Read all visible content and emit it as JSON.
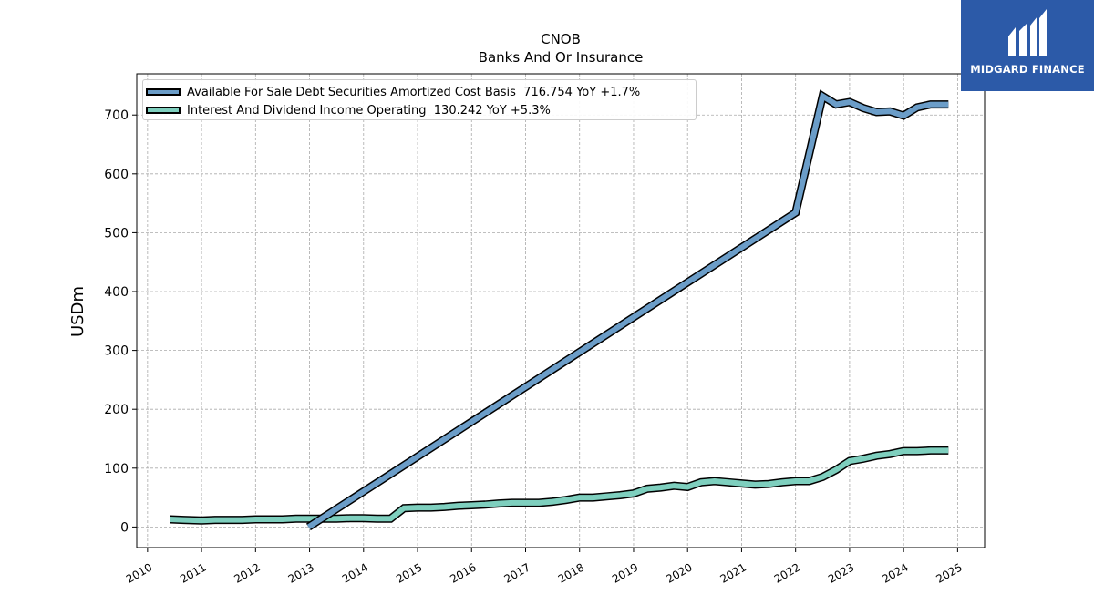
{
  "brand": {
    "name": "MIDGARD FINANCE",
    "color": "#2c5aa8"
  },
  "chart_data": {
    "type": "line",
    "title": "CNOB",
    "subtitle": "Banks And Or Insurance",
    "xlabel": "",
    "ylabel": "USDm",
    "xlim": [
      2009.8,
      2025.5
    ],
    "ylim": [
      -35,
      770
    ],
    "x_ticks": [
      "2010",
      "2011",
      "2012",
      "2013",
      "2014",
      "2015",
      "2016",
      "2017",
      "2018",
      "2019",
      "2020",
      "2021",
      "2022",
      "2023",
      "2024",
      "2025"
    ],
    "y_ticks": [
      "0",
      "100",
      "200",
      "300",
      "400",
      "500",
      "600",
      "700"
    ],
    "grid": true,
    "legend_position": "top-left",
    "series": [
      {
        "name": "Available For Sale Debt Securities Amortized Cost Basis",
        "legend_label": "Available For Sale Debt Securities Amortized Cost Basis  716.754 YoY +1.7%",
        "color": "#6b9dc8",
        "points": [
          [
            2012.98,
            0
          ],
          [
            2022.0,
            534
          ],
          [
            2022.5,
            732
          ],
          [
            2022.75,
            718
          ],
          [
            2023.0,
            722
          ],
          [
            2023.25,
            712
          ],
          [
            2023.5,
            705
          ],
          [
            2023.75,
            706
          ],
          [
            2024.0,
            699
          ],
          [
            2024.25,
            713
          ],
          [
            2024.5,
            718
          ],
          [
            2024.83,
            718
          ]
        ]
      },
      {
        "name": "Interest And Dividend Income Operating",
        "legend_label": "Interest And Dividend Income Operating  130.242 YoY +5.3%",
        "color": "#7ecfbe",
        "points": [
          [
            2010.42,
            13
          ],
          [
            2010.67,
            12
          ],
          [
            2011.0,
            11
          ],
          [
            2011.25,
            12
          ],
          [
            2011.5,
            12
          ],
          [
            2011.75,
            12
          ],
          [
            2012.0,
            13
          ],
          [
            2012.25,
            13
          ],
          [
            2012.5,
            13
          ],
          [
            2012.75,
            14
          ],
          [
            2013.0,
            14
          ],
          [
            2013.25,
            14
          ],
          [
            2013.5,
            14
          ],
          [
            2013.75,
            15
          ],
          [
            2014.0,
            15
          ],
          [
            2014.25,
            14
          ],
          [
            2014.5,
            14
          ],
          [
            2014.75,
            32
          ],
          [
            2015.0,
            33
          ],
          [
            2015.25,
            33
          ],
          [
            2015.5,
            34
          ],
          [
            2015.75,
            36
          ],
          [
            2016.0,
            37
          ],
          [
            2016.25,
            38
          ],
          [
            2016.5,
            40
          ],
          [
            2016.75,
            41
          ],
          [
            2017.0,
            41
          ],
          [
            2017.25,
            41
          ],
          [
            2017.5,
            43
          ],
          [
            2017.75,
            46
          ],
          [
            2018.0,
            50
          ],
          [
            2018.25,
            50
          ],
          [
            2018.5,
            52
          ],
          [
            2018.75,
            54
          ],
          [
            2019.0,
            57
          ],
          [
            2019.25,
            65
          ],
          [
            2019.5,
            67
          ],
          [
            2019.75,
            70
          ],
          [
            2020.0,
            68
          ],
          [
            2020.25,
            76
          ],
          [
            2020.5,
            78
          ],
          [
            2020.75,
            76
          ],
          [
            2021.0,
            74
          ],
          [
            2021.25,
            72
          ],
          [
            2021.5,
            73
          ],
          [
            2021.75,
            76
          ],
          [
            2022.0,
            78
          ],
          [
            2022.25,
            78
          ],
          [
            2022.5,
            85
          ],
          [
            2022.75,
            97
          ],
          [
            2023.0,
            112
          ],
          [
            2023.25,
            116
          ],
          [
            2023.5,
            121
          ],
          [
            2023.75,
            124
          ],
          [
            2024.0,
            129
          ],
          [
            2024.25,
            129
          ],
          [
            2024.5,
            130
          ],
          [
            2024.83,
            130
          ]
        ]
      }
    ]
  }
}
